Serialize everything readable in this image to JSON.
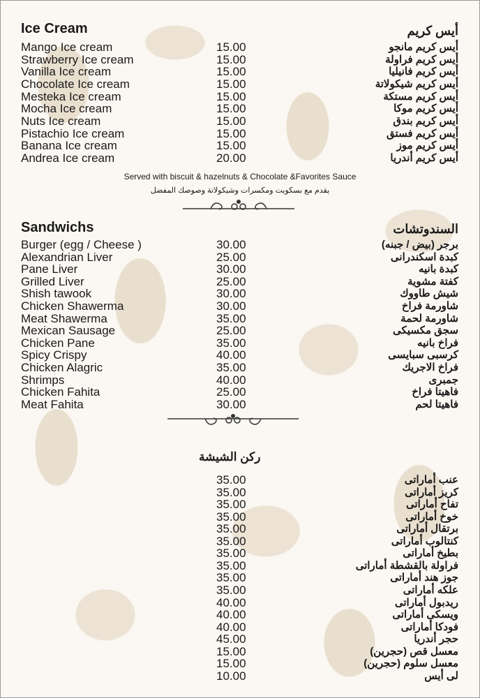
{
  "ice_cream": {
    "title_en": "Ice Cream",
    "title_ar": "أيس كريم",
    "items": [
      {
        "en": "Mango Ice cream",
        "price": "15.00",
        "ar": "أيس كريم مانجو"
      },
      {
        "en": "Strawberry Ice cream",
        "price": "15.00",
        "ar": "أيس كريم فراولة"
      },
      {
        "en": "Vanilla Ice cream",
        "price": "15.00",
        "ar": "أيس كريم فانيليا"
      },
      {
        "en": "Chocolate Ice cream",
        "price": "15.00",
        "ar": "أيس كريم شيكولاتة"
      },
      {
        "en": "Mesteka Ice cream",
        "price": "15.00",
        "ar": "أيس كريم مستكة"
      },
      {
        "en": "Mocha Ice cream",
        "price": "15.00",
        "ar": "أيس كريم موكا"
      },
      {
        "en": "Nuts Ice cream",
        "price": "15.00",
        "ar": "أيس كريم بندق"
      },
      {
        "en": "Pistachio Ice cream",
        "price": "15.00",
        "ar": "أيس كريم فستق"
      },
      {
        "en": "Banana Ice cream",
        "price": "15.00",
        "ar": "أيس كريم موز"
      },
      {
        "en": "Andrea Ice cream",
        "price": "20.00",
        "ar": "أيس كريم أندريا"
      }
    ],
    "note_en": "Served with biscuit & hazelnuts & Chocolate &Favorites Sauce",
    "note_ar": "يقدم مع بسكويت ومكسرات وشيكولاتة وصوصك المفضل"
  },
  "sandwiches": {
    "title_en": "Sandwichs",
    "title_ar": "السندوتشات",
    "items": [
      {
        "en": "Burger (egg / Cheese )",
        "price": "30.00",
        "ar": "برجر (بيض / جبنه)"
      },
      {
        "en": "Alexandrian Liver",
        "price": "25.00",
        "ar": "كبدة اسكندرانى"
      },
      {
        "en": "Pane Liver",
        "price": "30.00",
        "ar": "كبدة بانيه"
      },
      {
        "en": "Grilled Liver",
        "price": "25.00",
        "ar": "كفتة مشوية"
      },
      {
        "en": "Shish tawook",
        "price": "30.00",
        "ar": "شيش طاووك"
      },
      {
        "en": "Chicken Shawerma",
        "price": "30.00",
        "ar": "شاورمة فراخ"
      },
      {
        "en": "Meat Shawerma",
        "price": "35.00",
        "ar": "شاورمة لحمة"
      },
      {
        "en": "Mexican Sausage",
        "price": "25.00",
        "ar": "سجق مكسيكى"
      },
      {
        "en": "Chicken Pane",
        "price": "35.00",
        "ar": "فراخ بانيه"
      },
      {
        "en": "Spicy Crispy",
        "price": "40.00",
        "ar": "كرسبى سبايسى"
      },
      {
        "en": "Chicken Alagric",
        "price": "35.00",
        "ar": "فراخ الاجريك"
      },
      {
        "en": "Shrimps",
        "price": "40.00",
        "ar": "جمبرى"
      },
      {
        "en": "Chicken Fahita",
        "price": "25.00",
        "ar": "فاهيتا فراخ"
      },
      {
        "en": "Meat Fahita",
        "price": "30.00",
        "ar": "فاهيتا لحم"
      }
    ]
  },
  "shisha": {
    "title_ar": "ركن الشيشة",
    "items": [
      {
        "price": "35.00",
        "ar": "عنب أماراتى"
      },
      {
        "price": "35.00",
        "ar": "كريز أماراتى"
      },
      {
        "price": "35.00",
        "ar": "تفاح أماراتى"
      },
      {
        "price": "35.00",
        "ar": "خوخ أماراتى"
      },
      {
        "price": "35.00",
        "ar": "برتقال أماراتى"
      },
      {
        "price": "35.00",
        "ar": "كنتالوب أماراتى"
      },
      {
        "price": "35.00",
        "ar": "بطيخ أماراتى"
      },
      {
        "price": "35.00",
        "ar": "فراولة بالقشطة أماراتى"
      },
      {
        "price": "35.00",
        "ar": "جوز هند أماراتى"
      },
      {
        "price": "35.00",
        "ar": "علكه أماراتى"
      },
      {
        "price": "40.00",
        "ar": "ريدبول أماراتى"
      },
      {
        "price": "40.00",
        "ar": "ويسكى أماراتى"
      },
      {
        "price": "40.00",
        "ar": "فودكا أماراتى"
      },
      {
        "price": "45.00",
        "ar": "حجر أندريا"
      },
      {
        "price": "15.00",
        "ar": "معسل قص (حجرين)"
      },
      {
        "price": "15.00",
        "ar": "معسل سلوم (حجرين)"
      },
      {
        "price": "10.00",
        "ar": "لى أيس"
      }
    ]
  }
}
